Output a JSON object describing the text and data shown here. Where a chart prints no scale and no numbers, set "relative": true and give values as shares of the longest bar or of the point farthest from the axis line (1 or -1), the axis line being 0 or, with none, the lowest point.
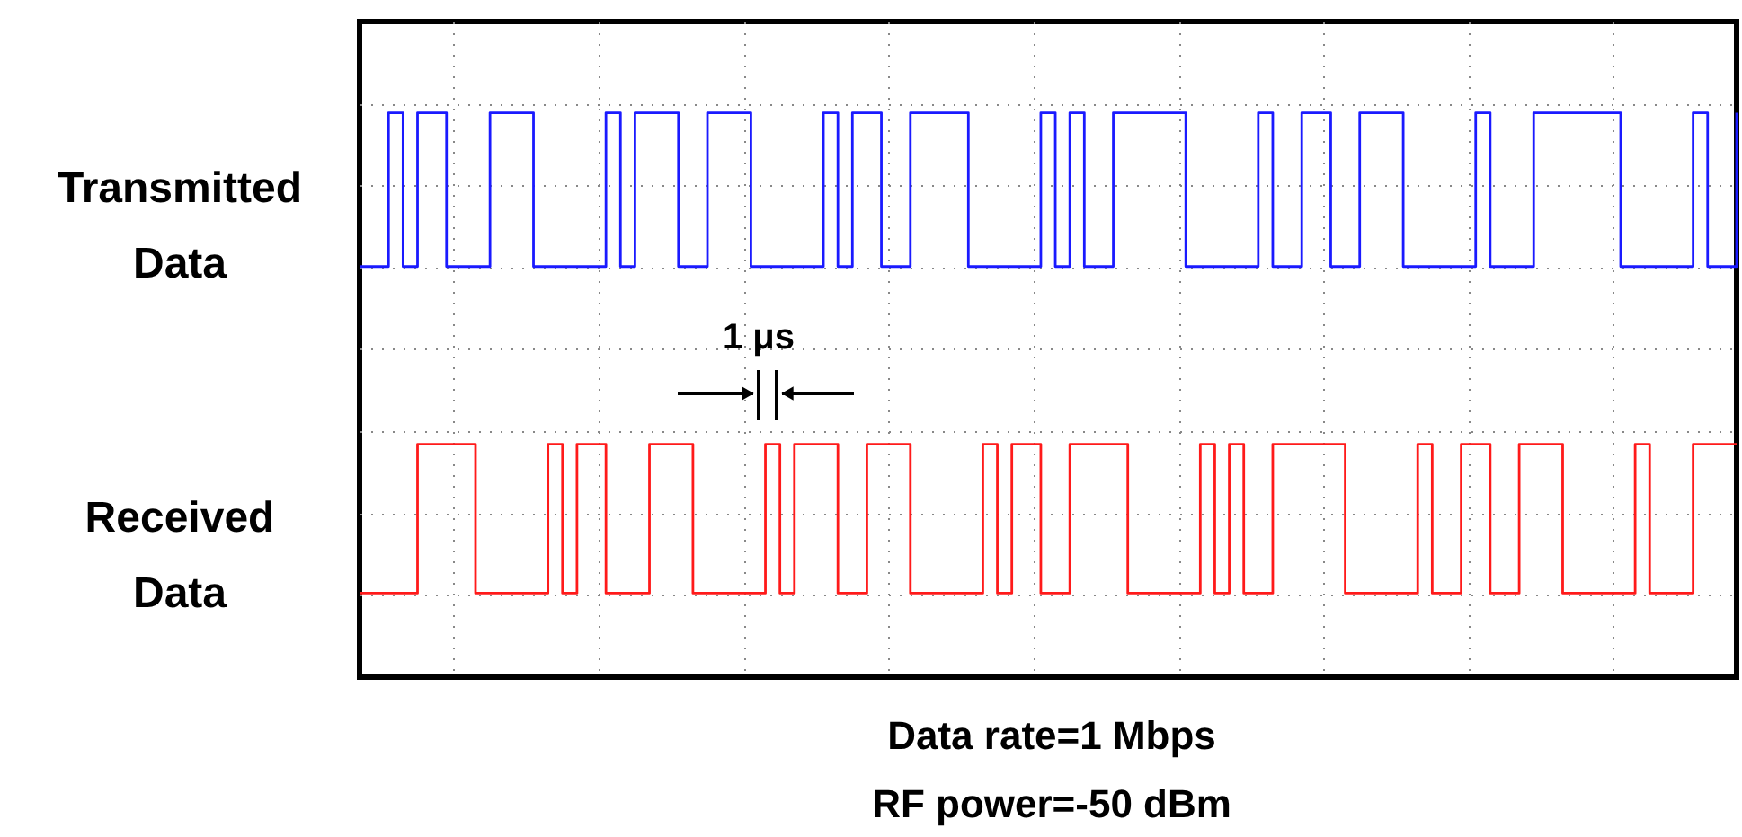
{
  "chart_data": {
    "type": "step",
    "relative": true,
    "grid": true,
    "categories": [
      null,
      null,
      null,
      null,
      null,
      null,
      null,
      null,
      null,
      null,
      null,
      null,
      null,
      null,
      null,
      null,
      null,
      null,
      null,
      null,
      null,
      null,
      null,
      null,
      null,
      null,
      null,
      null,
      null,
      null,
      null,
      null,
      null,
      null,
      null,
      null,
      null,
      null,
      null,
      null,
      null,
      null,
      null,
      null,
      null,
      null,
      null,
      null,
      null,
      null,
      null,
      null,
      null,
      null,
      null,
      null,
      null,
      null,
      null,
      null,
      null,
      null,
      null,
      null,
      null,
      null,
      null,
      null,
      null,
      null,
      null,
      null,
      null,
      null,
      null,
      null,
      null,
      null,
      null,
      null,
      null,
      null,
      null,
      null,
      null,
      null,
      null,
      null,
      null,
      null,
      null,
      null,
      null,
      null,
      null,
      null
    ],
    "series": [
      {
        "name": "Transmitted Data",
        "color": "#1a1aff",
        "values": [
          0.68,
          0.68,
          1,
          0.68,
          1,
          1,
          0.68,
          0.68,
          0.68,
          1,
          1,
          1,
          0.68,
          0.68,
          0.68,
          0.68,
          0.68,
          1,
          0.68,
          1,
          1,
          1,
          0.68,
          0.68,
          1,
          1,
          1,
          0.68,
          0.68,
          0.68,
          0.68,
          0.68,
          1,
          0.68,
          1,
          1,
          0.68,
          0.68,
          1,
          1,
          1,
          1,
          0.68,
          0.68,
          0.68,
          0.68,
          0.68,
          1,
          0.68,
          1,
          0.68,
          0.68,
          1,
          1,
          1,
          1,
          1,
          0.68,
          0.68,
          0.68,
          0.68,
          0.68,
          1,
          0.68,
          0.68,
          1,
          1,
          0.68,
          0.68,
          1,
          1,
          1,
          0.68,
          0.68,
          0.68,
          0.68,
          0.68,
          1,
          0.68,
          0.68,
          0.68,
          1,
          1,
          1,
          1,
          1,
          1,
          0.68,
          0.68,
          0.68,
          0.68,
          0.68,
          1,
          0.68,
          0.68,
          1
        ]
      },
      {
        "name": "Received Data",
        "color": "#ff1a1a",
        "values": [
          0,
          0,
          0,
          0,
          0.31,
          0.31,
          0.31,
          0.31,
          0,
          0,
          0,
          0,
          0,
          0.31,
          0,
          0.31,
          0.31,
          0,
          0,
          0,
          0.31,
          0.31,
          0.31,
          0,
          0,
          0,
          0,
          0,
          0.31,
          0,
          0.31,
          0.31,
          0.31,
          0,
          0,
          0.31,
          0.31,
          0.31,
          0,
          0,
          0,
          0,
          0,
          0.31,
          0,
          0.31,
          0.31,
          0,
          0,
          0.31,
          0.31,
          0.31,
          0.31,
          0,
          0,
          0,
          0,
          0,
          0.31,
          0,
          0.31,
          0,
          0,
          0.31,
          0.31,
          0.31,
          0.31,
          0.31,
          0,
          0,
          0,
          0,
          0,
          0.31,
          0,
          0,
          0.31,
          0.31,
          0,
          0,
          0.31,
          0.31,
          0.31,
          0,
          0,
          0,
          0,
          0,
          0.31,
          0,
          0,
          0,
          0.31,
          0.31,
          0.31,
          0.31
        ]
      }
    ],
    "annotations": [
      "1 μs",
      "Data rate=1 Mbps",
      "RF power=-50 dBm"
    ]
  }
}
